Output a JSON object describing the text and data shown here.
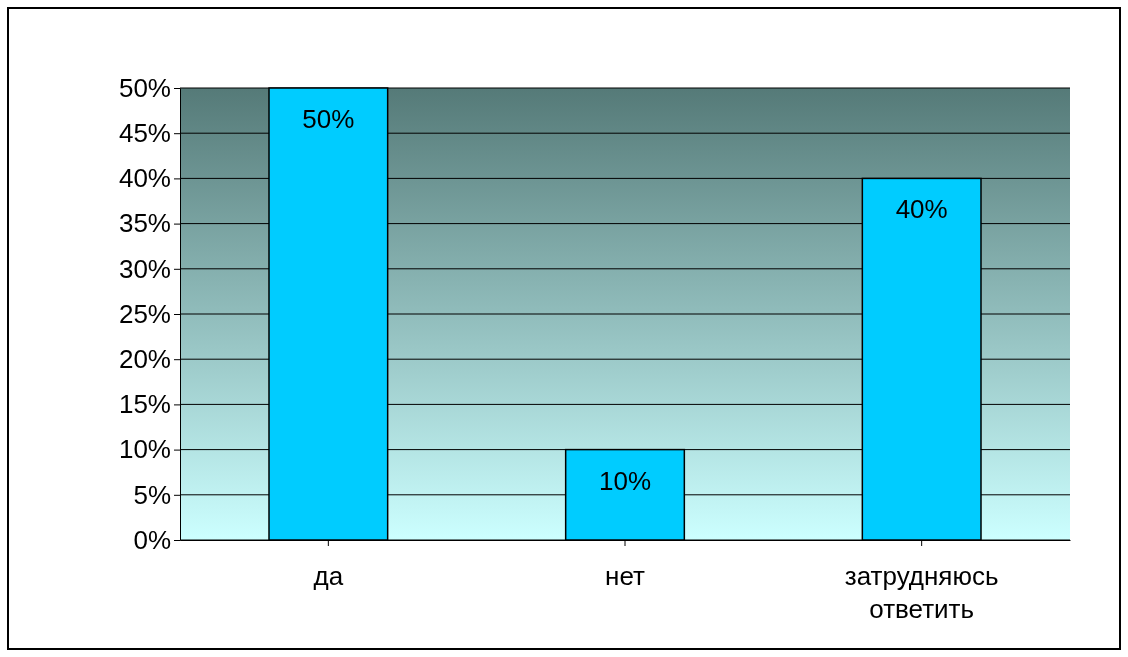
{
  "chart_data": {
    "type": "bar",
    "categories": [
      "да",
      "нет",
      "затрудняюсь ответить"
    ],
    "values": [
      50,
      10,
      40
    ],
    "color": "#00ccff",
    "value_labels": [
      "50%",
      "10%",
      "40%"
    ],
    "ylim": [
      0,
      50
    ],
    "yticks": [
      {
        "value": 0,
        "label": "0%"
      },
      {
        "value": 5,
        "label": "5%"
      },
      {
        "value": 10,
        "label": "10%"
      },
      {
        "value": 15,
        "label": "15%"
      },
      {
        "value": 20,
        "label": "20%"
      },
      {
        "value": 25,
        "label": "25%"
      },
      {
        "value": 30,
        "label": "30%"
      },
      {
        "value": 35,
        "label": "35%"
      },
      {
        "value": 40,
        "label": "40%"
      },
      {
        "value": 45,
        "label": "45%"
      },
      {
        "value": 50,
        "label": "50%"
      }
    ],
    "grid": "y"
  }
}
